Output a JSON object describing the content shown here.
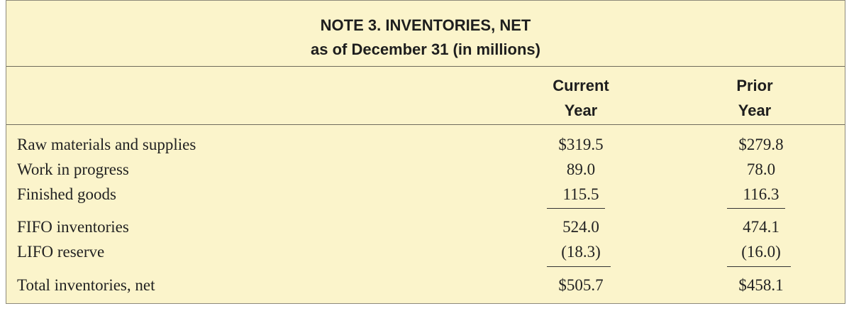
{
  "header": {
    "title": "NOTE 3. INVENTORIES, NET",
    "subtitle": "as of December 31 (in millions)"
  },
  "columns": {
    "current": {
      "line1": "Current",
      "line2": "Year"
    },
    "prior": {
      "line1": "Prior",
      "line2": "Year"
    }
  },
  "rows": [
    {
      "label": "Raw materials and supplies",
      "current": "$319.5",
      "prior": "$279.8"
    },
    {
      "label": "Work in progress",
      "current": "89.0",
      "prior": "78.0"
    },
    {
      "label": "Finished goods",
      "current": "115.5",
      "prior": "116.3"
    },
    {
      "label": "FIFO inventories",
      "current": "524.0",
      "prior": "474.1"
    },
    {
      "label": "LIFO reserve",
      "current": "(18.3)",
      "prior": "(16.0)"
    },
    {
      "label": "Total inventories, net",
      "current": "$505.7",
      "prior": "$458.1"
    }
  ]
}
